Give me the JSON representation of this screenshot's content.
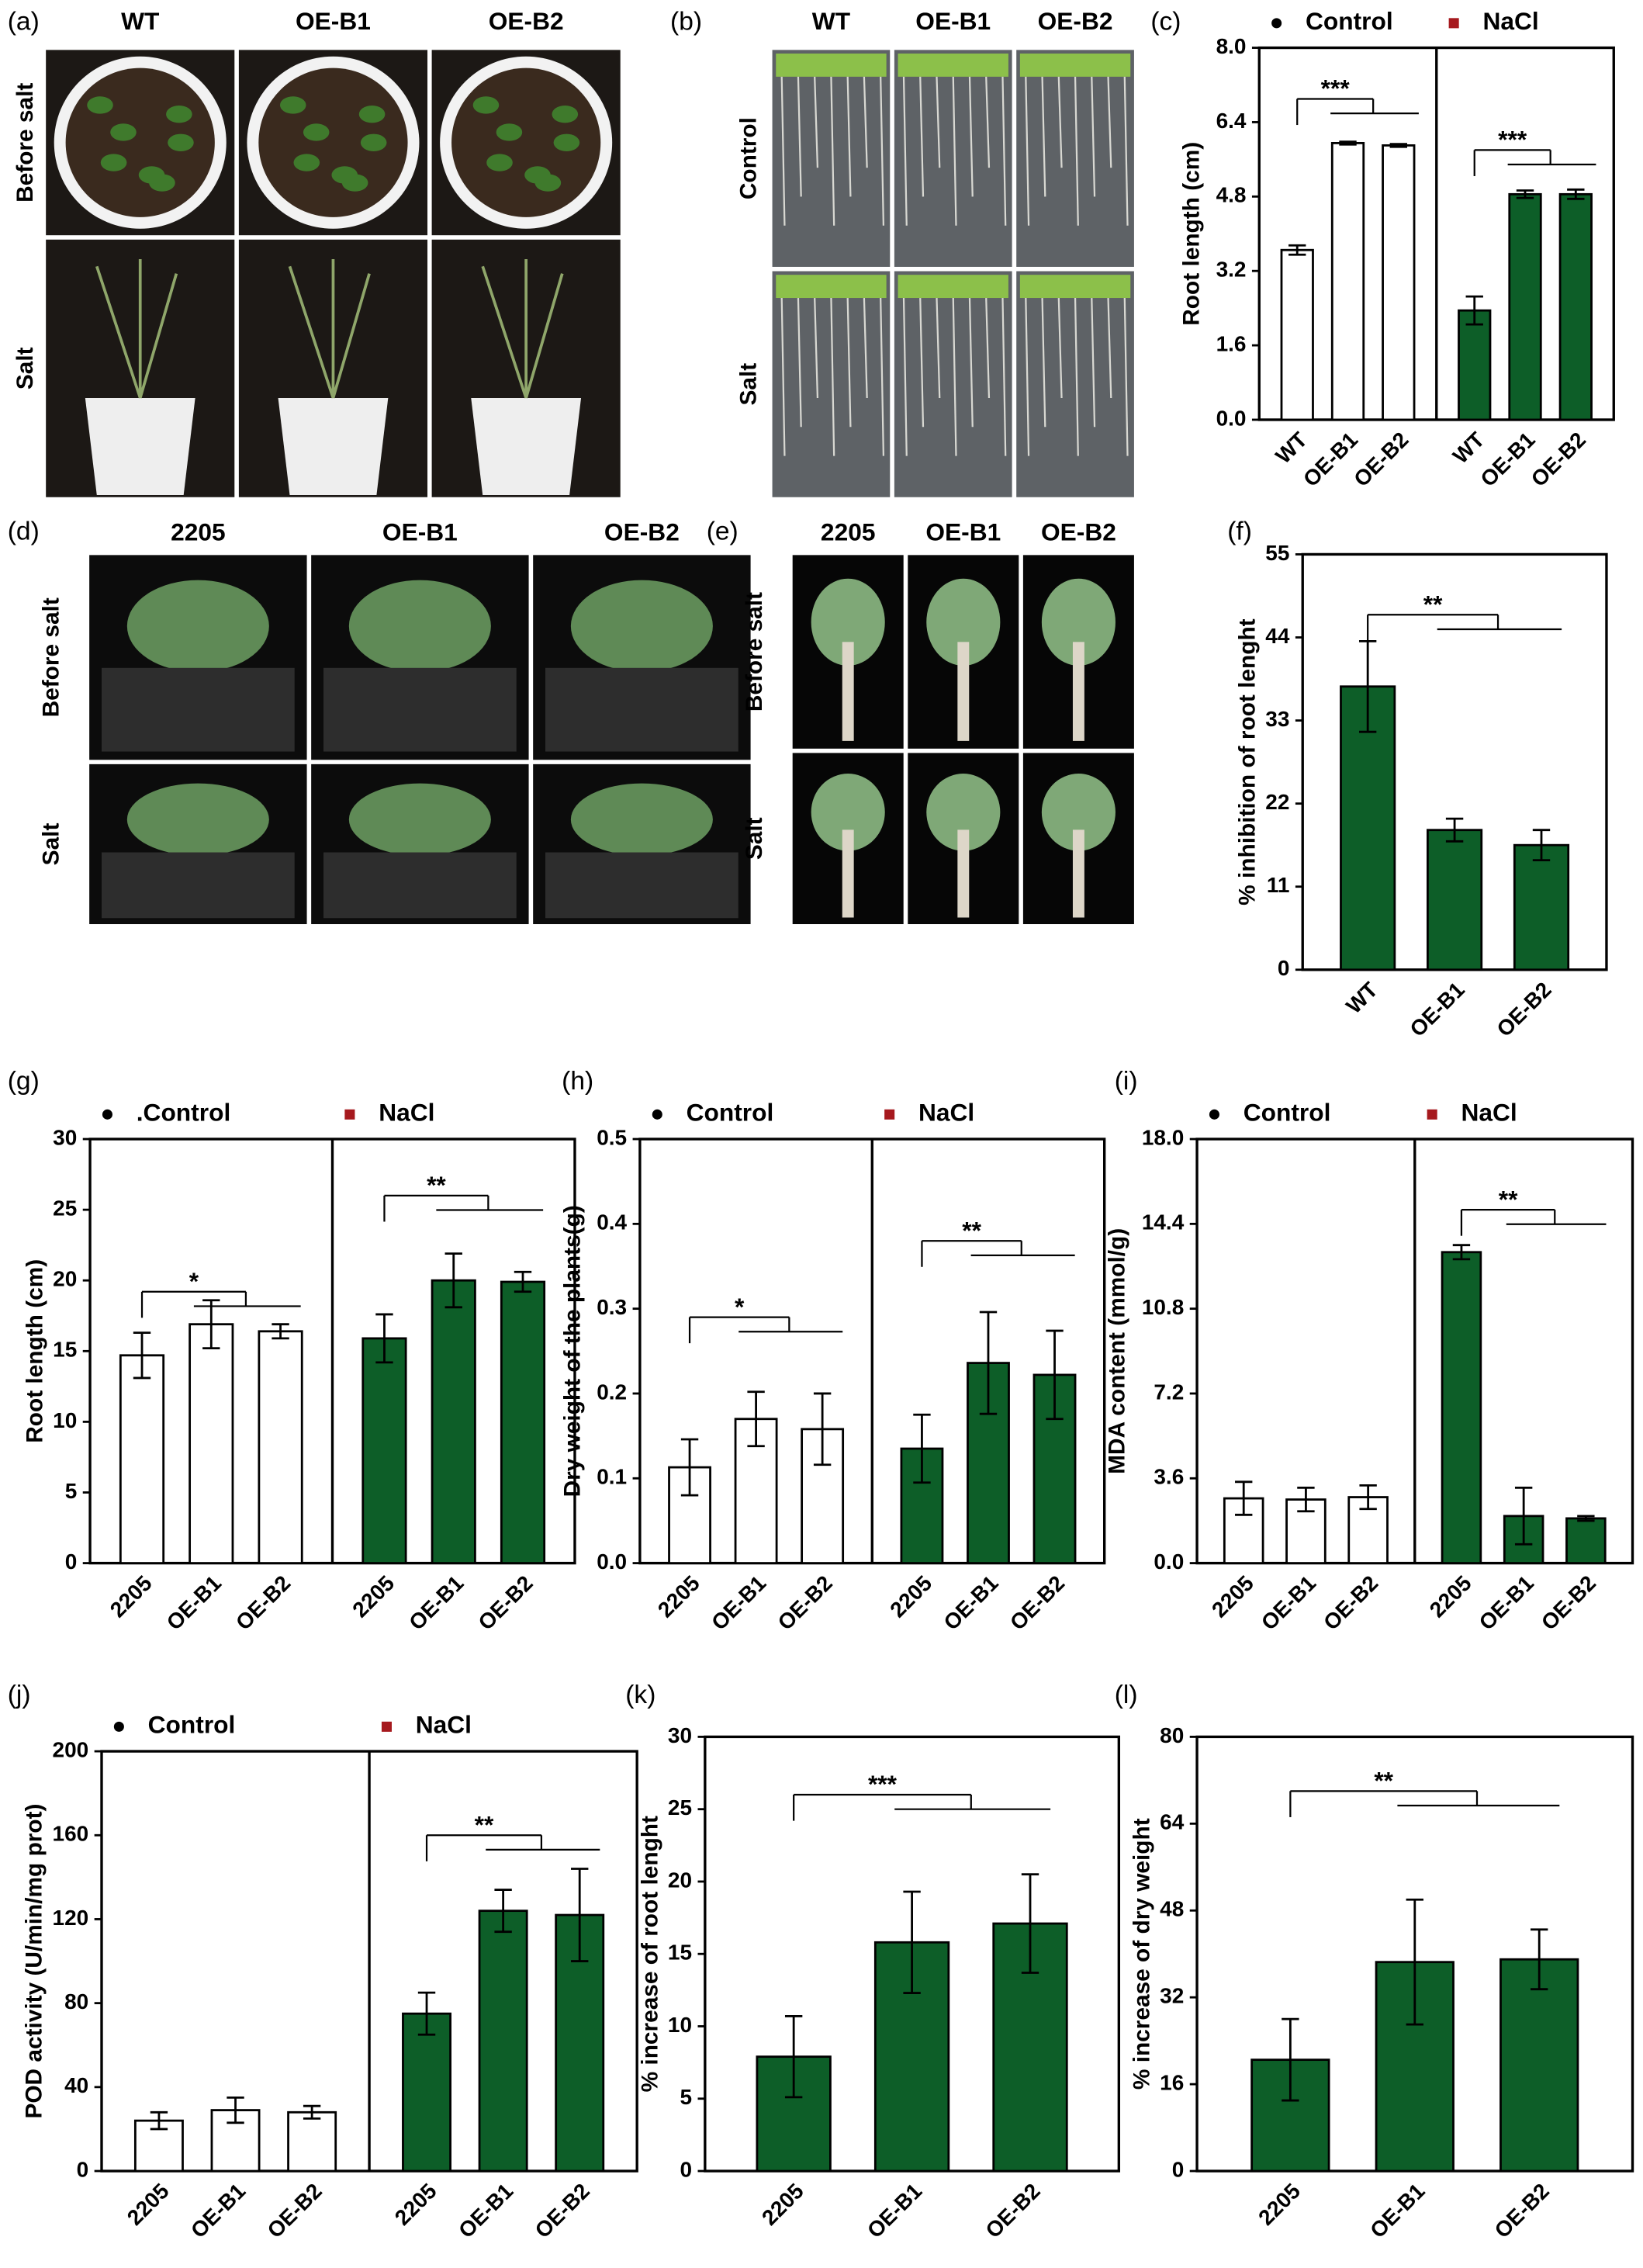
{
  "photo_panels": [
    {
      "label": "(a)",
      "columns": [
        "WT",
        "OE-B1",
        "OE-B2"
      ],
      "rows": [
        "Before salt",
        "Salt"
      ]
    },
    {
      "label": "(b)",
      "columns": [
        "WT",
        "OE-B1",
        "OE-B2"
      ],
      "rows": [
        "Control",
        "Salt"
      ]
    },
    {
      "label": "(d)",
      "columns": [
        "2205",
        "OE-B1",
        "OE-B2"
      ],
      "rows": [
        "Before salt",
        "Salt"
      ]
    },
    {
      "label": "(e)",
      "columns": [
        "2205",
        "OE-B1",
        "OE-B2"
      ],
      "rows": [
        "Before salt",
        "Salt"
      ]
    }
  ],
  "chart_data": [
    {
      "type": "bar",
      "panel": "(c)",
      "ylabel": "Root length (cm)",
      "categories": [
        "WT",
        "OE-B1",
        "OE-B2"
      ],
      "ylim": [
        0,
        8
      ],
      "yticks": [
        {
          "value": 0,
          "label": "0.0"
        },
        1.6,
        3.2,
        4.8,
        6.4,
        {
          "value": 8,
          "label": "8.0"
        }
      ],
      "series": [
        {
          "name": "Control",
          "color": "#ffffff",
          "marker_color": "#000000",
          "values": [
            3.65,
            5.95,
            5.9
          ],
          "errors": [
            0.1,
            0.03,
            0.03
          ],
          "sig": {
            "label": "***",
            "y": 6.9
          }
        },
        {
          "name": "NaCl",
          "color": "#0d5e28",
          "marker_color": "#a6191e",
          "values": [
            2.35,
            4.85,
            4.85
          ],
          "errors": [
            0.3,
            0.08,
            0.1
          ],
          "sig": {
            "label": "***",
            "y": 5.8
          }
        }
      ]
    },
    {
      "type": "bar",
      "panel": "(f)",
      "ylabel": "% inhibition of root lenght",
      "categories": [
        "WT",
        "OE-B1",
        "OE-B2"
      ],
      "ylim": [
        0,
        55
      ],
      "yticks": [
        0,
        11,
        22,
        33,
        44,
        55
      ],
      "color": "#0d5e28",
      "values": [
        37.5,
        18.5,
        16.5
      ],
      "errors": [
        6,
        1.5,
        2
      ],
      "sig": {
        "label": "**",
        "y": 47
      }
    },
    {
      "type": "bar",
      "panel": "(g)",
      "ylabel": "Root length (cm)",
      "categories": [
        "2205",
        "OE-B1",
        "OE-B2"
      ],
      "ylim": [
        0,
        30
      ],
      "yticks": [
        0,
        5,
        10,
        15,
        20,
        25,
        30
      ],
      "series": [
        {
          "name": ".Control",
          "color": "#ffffff",
          "marker_color": "#000000",
          "values": [
            14.7,
            16.9,
            16.4
          ],
          "errors": [
            1.6,
            1.7,
            0.5
          ],
          "sig": {
            "label": "*",
            "y": 19.2
          }
        },
        {
          "name": "NaCl",
          "color": "#0d5e28",
          "marker_color": "#a6191e",
          "values": [
            15.9,
            20.0,
            19.9
          ],
          "errors": [
            1.7,
            1.9,
            0.7
          ],
          "sig": {
            "label": "**",
            "y": 26
          }
        }
      ]
    },
    {
      "type": "bar",
      "panel": "(h)",
      "ylabel": "Dry weight of the plants(g)",
      "categories": [
        "2205",
        "OE-B1",
        "OE-B2"
      ],
      "ylim": [
        0,
        0.5
      ],
      "yticks": [
        {
          "value": 0,
          "label": "0.0"
        },
        0.1,
        0.2,
        0.3,
        0.4,
        0.5
      ],
      "series": [
        {
          "name": "Control",
          "color": "#ffffff",
          "marker_color": "#000000",
          "values": [
            0.113,
            0.17,
            0.158
          ],
          "errors": [
            0.033,
            0.032,
            0.042
          ],
          "sig": {
            "label": "*",
            "y": 0.29
          }
        },
        {
          "name": "NaCl",
          "color": "#0d5e28",
          "marker_color": "#a6191e",
          "values": [
            0.135,
            0.236,
            0.222
          ],
          "errors": [
            0.04,
            0.06,
            0.052
          ],
          "sig": {
            "label": "**",
            "y": 0.38
          }
        }
      ]
    },
    {
      "type": "bar",
      "panel": "(i)",
      "ylabel": "MDA content (mmol/g)",
      "categories": [
        "2205",
        "OE-B1",
        "OE-B2"
      ],
      "ylim": [
        0,
        18
      ],
      "yticks": [
        {
          "value": 0,
          "label": "0.0"
        },
        3.6,
        7.2,
        10.8,
        14.4,
        {
          "value": 18,
          "label": "18.0"
        }
      ],
      "series": [
        {
          "name": "Control",
          "color": "#ffffff",
          "marker_color": "#000000",
          "values": [
            2.75,
            2.7,
            2.8
          ],
          "errors": [
            0.7,
            0.5,
            0.5
          ]
        },
        {
          "name": "NaCl",
          "color": "#0d5e28",
          "marker_color": "#a6191e",
          "values": [
            13.2,
            2.0,
            1.9
          ],
          "errors": [
            0.3,
            1.2,
            0.1
          ],
          "sig": {
            "label": "**",
            "y": 15
          }
        }
      ]
    },
    {
      "type": "bar",
      "panel": "(j)",
      "ylabel": "POD activity (U/min/mg prot)",
      "categories": [
        "2205",
        "OE-B1",
        "OE-B2"
      ],
      "ylim": [
        0,
        200
      ],
      "yticks": [
        0,
        40,
        80,
        120,
        160,
        200
      ],
      "series": [
        {
          "name": "Control",
          "color": "#ffffff",
          "marker_color": "#000000",
          "values": [
            24,
            29,
            28
          ],
          "errors": [
            4,
            6,
            3
          ]
        },
        {
          "name": "NaCl",
          "color": "#0d5e28",
          "marker_color": "#a6191e",
          "values": [
            75,
            124,
            122
          ],
          "errors": [
            10,
            10,
            22
          ],
          "sig": {
            "label": "**",
            "y": 160
          }
        }
      ]
    },
    {
      "type": "bar",
      "panel": "(k)",
      "ylabel": "% increase of root lenght",
      "categories": [
        "2205",
        "OE-B1",
        "OE-B2"
      ],
      "ylim": [
        0,
        30
      ],
      "yticks": [
        0,
        5,
        10,
        15,
        20,
        25,
        30
      ],
      "color": "#0d5e28",
      "values": [
        7.9,
        15.8,
        17.1
      ],
      "errors": [
        2.8,
        3.5,
        3.4
      ],
      "sig": {
        "label": "***",
        "y": 26
      }
    },
    {
      "type": "bar",
      "panel": "(l)",
      "ylabel": "% increase of dry weight",
      "categories": [
        "2205",
        "OE-B1",
        "OE-B2"
      ],
      "ylim": [
        0,
        80
      ],
      "yticks": [
        0,
        16,
        32,
        48,
        64,
        80
      ],
      "color": "#0d5e28",
      "values": [
        20.5,
        38.5,
        39
      ],
      "errors": [
        7.5,
        11.5,
        5.5
      ],
      "sig": {
        "label": "**",
        "y": 70
      }
    }
  ]
}
